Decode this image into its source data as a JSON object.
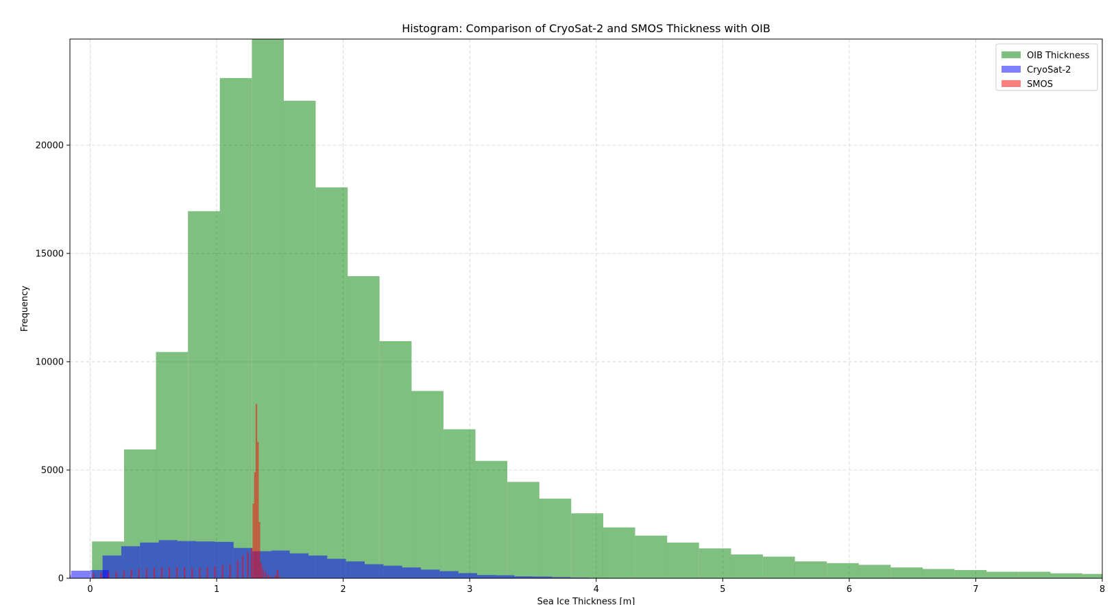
{
  "chart_data": {
    "type": "bar",
    "subtype": "histogram",
    "title": "Histogram: Comparison of CryoSat-2 and SMOS Thickness with OIB",
    "xlabel": "Sea Ice Thickness [m]",
    "ylabel": "Frequency",
    "xlim": [
      -0.16,
      8.0
    ],
    "ylim": [
      0,
      24900
    ],
    "xticks": [
      0,
      1,
      2,
      3,
      4,
      5,
      6,
      7,
      8
    ],
    "yticks": [
      0,
      5000,
      10000,
      15000,
      20000
    ],
    "grid": true,
    "legend_position": "top-right",
    "series": [
      {
        "name": "OIB Thickness",
        "color": "#008000",
        "alpha": 0.5,
        "bin_width": 0.2525,
        "bins": [
          [
            0.015,
            1700
          ],
          [
            0.268,
            5950
          ],
          [
            0.52,
            10450
          ],
          [
            0.773,
            16950
          ],
          [
            1.025,
            23100
          ],
          [
            1.278,
            24900
          ],
          [
            1.53,
            22050
          ],
          [
            1.783,
            18050
          ],
          [
            2.035,
            13950
          ],
          [
            2.288,
            10950
          ],
          [
            2.54,
            8650
          ],
          [
            2.793,
            6880
          ],
          [
            3.045,
            5420
          ],
          [
            3.298,
            4450
          ],
          [
            3.55,
            3680
          ],
          [
            3.803,
            3000
          ],
          [
            4.055,
            2350
          ],
          [
            4.308,
            1970
          ],
          [
            4.56,
            1650
          ],
          [
            4.813,
            1380
          ],
          [
            5.065,
            1100
          ],
          [
            5.318,
            1000
          ],
          [
            5.57,
            780
          ],
          [
            5.823,
            700
          ],
          [
            6.075,
            620
          ],
          [
            6.328,
            500
          ],
          [
            6.58,
            430
          ],
          [
            6.833,
            380
          ],
          [
            7.085,
            300
          ],
          [
            7.338,
            300
          ],
          [
            7.59,
            230
          ],
          [
            7.843,
            200
          ]
        ]
      },
      {
        "name": "CryoSat-2",
        "color": "#0000ff",
        "alpha": 0.5,
        "bin_width": 0.148,
        "bins": [
          [
            -0.3,
            150
          ],
          [
            -0.15,
            350
          ],
          [
            0.0,
            380
          ],
          [
            0.098,
            1050
          ],
          [
            0.246,
            1480
          ],
          [
            0.394,
            1650
          ],
          [
            0.542,
            1760
          ],
          [
            0.69,
            1720
          ],
          [
            0.838,
            1700
          ],
          [
            0.986,
            1680
          ],
          [
            1.134,
            1400
          ],
          [
            1.282,
            1250
          ],
          [
            1.43,
            1280
          ],
          [
            1.578,
            1150
          ],
          [
            1.726,
            1050
          ],
          [
            1.874,
            900
          ],
          [
            2.022,
            780
          ],
          [
            2.17,
            650
          ],
          [
            2.318,
            580
          ],
          [
            2.466,
            500
          ],
          [
            2.614,
            400
          ],
          [
            2.762,
            330
          ],
          [
            2.91,
            240
          ],
          [
            3.058,
            150
          ],
          [
            3.206,
            140
          ],
          [
            3.354,
            90
          ],
          [
            3.502,
            80
          ],
          [
            3.65,
            50
          ],
          [
            3.798,
            30
          ],
          [
            3.946,
            20
          ]
        ]
      },
      {
        "name": "SMOS",
        "color": "#ff0000",
        "alpha": 0.5,
        "bin_width": 0.012,
        "bins": [
          [
            0.02,
            250
          ],
          [
            0.08,
            260
          ],
          [
            0.14,
            280
          ],
          [
            0.2,
            320
          ],
          [
            0.26,
            360
          ],
          [
            0.32,
            410
          ],
          [
            0.38,
            440
          ],
          [
            0.44,
            460
          ],
          [
            0.5,
            500
          ],
          [
            0.56,
            520
          ],
          [
            0.62,
            500
          ],
          [
            0.68,
            520
          ],
          [
            0.74,
            510
          ],
          [
            0.8,
            480
          ],
          [
            0.86,
            500
          ],
          [
            0.92,
            520
          ],
          [
            0.98,
            560
          ],
          [
            1.04,
            600
          ],
          [
            1.1,
            650
          ],
          [
            1.16,
            820
          ],
          [
            1.2,
            1050
          ],
          [
            1.24,
            1200
          ],
          [
            1.27,
            1400
          ],
          [
            1.284,
            3450
          ],
          [
            1.296,
            4900
          ],
          [
            1.308,
            8050
          ],
          [
            1.32,
            6300
          ],
          [
            1.332,
            2600
          ],
          [
            1.344,
            700
          ],
          [
            1.36,
            450
          ],
          [
            1.38,
            300
          ],
          [
            1.4,
            150
          ],
          [
            1.42,
            80
          ],
          [
            1.44,
            40
          ],
          [
            1.46,
            150
          ],
          [
            1.475,
            380
          ],
          [
            1.49,
            80
          ],
          [
            1.52,
            30
          ]
        ]
      }
    ]
  }
}
